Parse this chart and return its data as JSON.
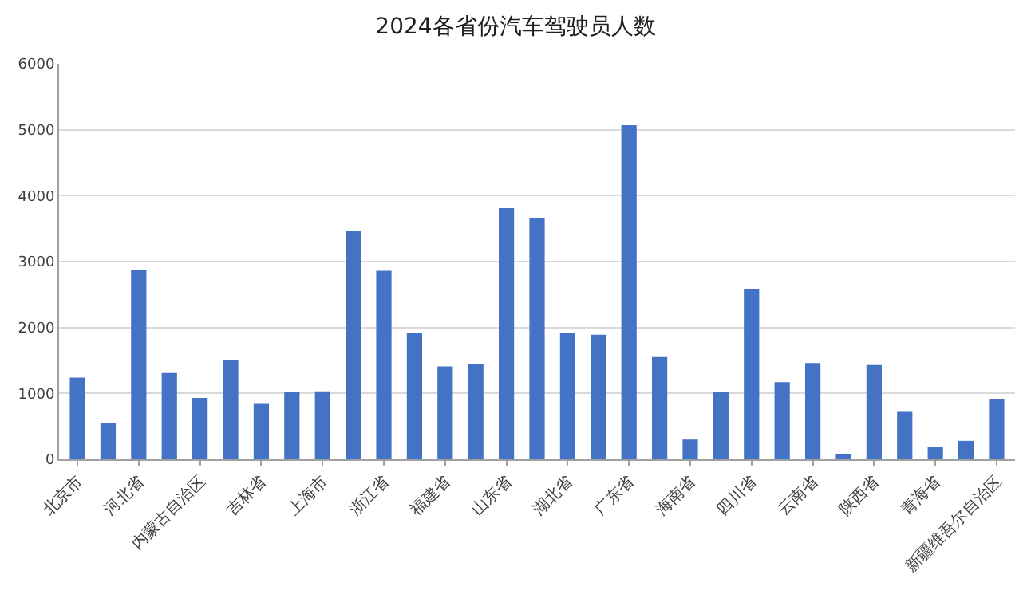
{
  "chart_data": {
    "type": "bar",
    "title": "2024各省份汽车驾驶员人数",
    "categories": [
      "北京市",
      null,
      "河北省",
      null,
      "内蒙古自治区",
      null,
      "吉林省",
      null,
      "上海市",
      null,
      "浙江省",
      null,
      "福建省",
      null,
      "山东省",
      null,
      "湖北省",
      null,
      "广东省",
      null,
      "海南省",
      null,
      "四川省",
      null,
      "云南省",
      null,
      "陕西省",
      null,
      "青海省",
      null,
      "新疆维吾尔自治区"
    ],
    "values": [
      1240,
      550,
      2870,
      1310,
      930,
      1510,
      840,
      1020,
      1030,
      3460,
      2860,
      1920,
      1410,
      1440,
      3810,
      3660,
      1920,
      1890,
      5070,
      1550,
      300,
      1020,
      2590,
      1170,
      1460,
      80,
      1430,
      720,
      190,
      280,
      910
    ],
    "color": "#4472c4",
    "ylim": [
      0,
      6000
    ],
    "yticks": [
      0,
      1000,
      2000,
      3000,
      4000,
      5000,
      6000
    ],
    "grid": "y"
  }
}
